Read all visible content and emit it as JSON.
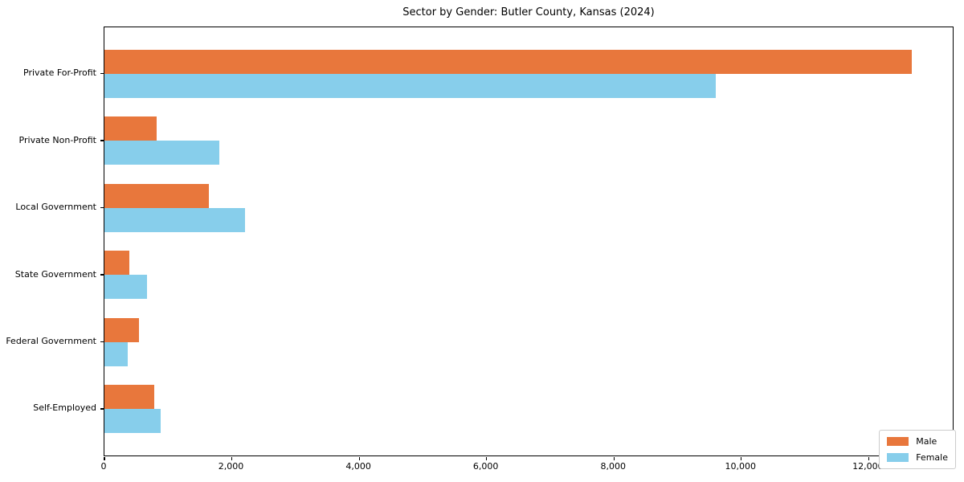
{
  "chart_data": {
    "type": "bar",
    "orientation": "horizontal",
    "title": "Sector by Gender: Butler County, Kansas (2024)",
    "categories": [
      "Private For-Profit",
      "Private Non-Profit",
      "Local Government",
      "State Government",
      "Federal Government",
      "Self-Employed"
    ],
    "series": [
      {
        "name": "Male",
        "color": "#e8773c",
        "values": [
          12680,
          820,
          1640,
          390,
          540,
          780
        ]
      },
      {
        "name": "Female",
        "color": "#87ceeb",
        "values": [
          9600,
          1800,
          2210,
          670,
          360,
          880
        ]
      }
    ],
    "xlim": [
      0,
      13315
    ],
    "xtick_values": [
      0,
      2000,
      4000,
      6000,
      8000,
      10000,
      12000
    ],
    "xtick_labels": [
      "0",
      "2,000",
      "4,000",
      "6,000",
      "8,000",
      "10,000",
      "12,000"
    ],
    "legend_position": "lower right",
    "grid": false,
    "xlabel": "",
    "ylabel": ""
  }
}
